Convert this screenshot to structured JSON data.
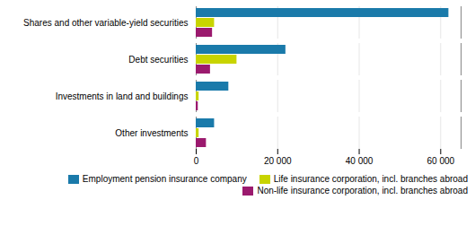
{
  "chart_data": {
    "type": "bar",
    "orientation": "horizontal",
    "categories": [
      "Shares and other variable-yield securities",
      "Debt securities",
      "Investments in land and buildings",
      "Other investments"
    ],
    "series": [
      {
        "name": "Employment pension insurance company",
        "color": "#1a7aaa",
        "values": [
          62000,
          22000,
          8000,
          4500
        ]
      },
      {
        "name": "Life insurance corporation, incl. branches abroad",
        "color": "#c8d400",
        "values": [
          4500,
          10000,
          700,
          700
        ]
      },
      {
        "name": "Non-life insurance corporation, incl. branches abroad",
        "color": "#9b1a6e",
        "values": [
          4000,
          3500,
          500,
          2500
        ]
      }
    ],
    "xlim": [
      0,
      65000
    ],
    "xticks": [
      0,
      {
        "value": 20000,
        "label": "20 000"
      },
      {
        "value": 40000,
        "label": "40 000"
      },
      {
        "value": 60000,
        "label": "60 000"
      }
    ],
    "grid": true,
    "legend": "bottom"
  }
}
